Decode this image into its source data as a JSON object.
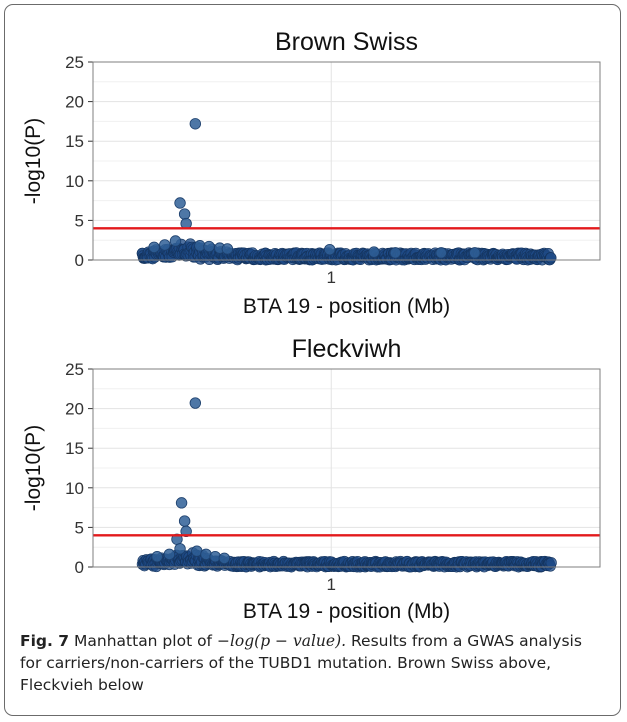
{
  "figure": {
    "caption_label": "Fig. 7",
    "caption_math": "−log(p − value).",
    "caption_lead": "Manhattan plot of",
    "caption_text": "Results from a GWAS analysis for carriers/non-carriers of the TUBD1 mutation. Brown Swiss above, Fleckvieh below"
  },
  "colors": {
    "points": "#2f5f97",
    "points_dense": "#1f4a86",
    "threshold": "#e31a1c",
    "panel_bg": "#ffffff",
    "grid_major": "#e3e3e3",
    "grid_minor": "#f0f0f0"
  },
  "chart_data": [
    {
      "type": "scatter",
      "title": "Brown Swiss",
      "xlabel": "BTA 19 - position (Mb)",
      "ylabel": "-log10(P)",
      "ylim": [
        0,
        25
      ],
      "y_ticks": [
        "0",
        "5",
        "10",
        "15",
        "20",
        "25"
      ],
      "x_ticks": [
        "1"
      ],
      "grid": true,
      "threshold": 4,
      "highlight_points": [
        {
          "x": 0.555,
          "y": 17.2
        },
        {
          "x": 0.505,
          "y": 7.2
        },
        {
          "x": 0.52,
          "y": 5.8
        },
        {
          "x": 0.525,
          "y": 4.6
        },
        {
          "x": 0.49,
          "y": 2.4
        },
        {
          "x": 0.455,
          "y": 1.9
        },
        {
          "x": 0.42,
          "y": 1.6
        },
        {
          "x": 0.57,
          "y": 1.8
        },
        {
          "x": 0.6,
          "y": 1.7
        },
        {
          "x": 0.635,
          "y": 1.5
        },
        {
          "x": 0.66,
          "y": 1.4
        },
        {
          "x": 0.995,
          "y": 1.3
        },
        {
          "x": 1.14,
          "y": 1.0
        },
        {
          "x": 1.21,
          "y": 0.9
        },
        {
          "x": 1.36,
          "y": 0.9
        },
        {
          "x": 1.47,
          "y": 0.9
        }
      ],
      "series": [
        {
          "values_note": "",
          "x_range": [
            0.38,
            1.72
          ],
          "baseline_max": 0.9,
          "peak_center": 0.53,
          "peak_height": 1.4
        }
      ]
    },
    {
      "type": "scatter",
      "title": "Fleckviwh",
      "xlabel": "BTA 19 - position (Mb)",
      "ylabel": "-log10(P)",
      "ylim": [
        0,
        25
      ],
      "y_ticks": [
        "0",
        "5",
        "10",
        "15",
        "20",
        "25"
      ],
      "x_ticks": [
        "1"
      ],
      "grid": true,
      "threshold": 4,
      "highlight_points": [
        {
          "x": 0.555,
          "y": 20.7
        },
        {
          "x": 0.51,
          "y": 8.1
        },
        {
          "x": 0.52,
          "y": 5.8
        },
        {
          "x": 0.525,
          "y": 4.5
        },
        {
          "x": 0.495,
          "y": 3.5
        },
        {
          "x": 0.505,
          "y": 2.3
        },
        {
          "x": 0.47,
          "y": 1.6
        },
        {
          "x": 0.43,
          "y": 1.3
        },
        {
          "x": 0.56,
          "y": 2.0
        },
        {
          "x": 0.59,
          "y": 1.6
        },
        {
          "x": 0.62,
          "y": 1.3
        },
        {
          "x": 0.65,
          "y": 1.1
        }
      ],
      "series": [
        {
          "values_note": "",
          "x_range": [
            0.38,
            1.72
          ],
          "baseline_max": 0.7,
          "peak_center": 0.53,
          "peak_height": 1.4
        }
      ]
    }
  ]
}
